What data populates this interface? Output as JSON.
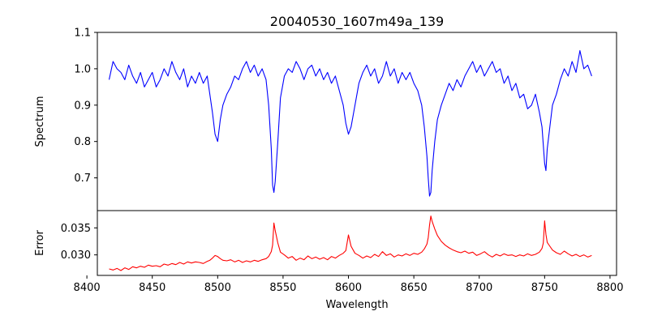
{
  "chart_data": [
    {
      "type": "line",
      "title": "20040530_1607m49a_139",
      "xlabel": "",
      "ylabel": "Spectrum",
      "xlim": [
        8408,
        8805
      ],
      "ylim": [
        0.61,
        1.1
      ],
      "yticks": [
        0.7,
        0.8,
        0.9,
        1.0,
        1.1
      ],
      "ytick_labels": [
        "0.7",
        "0.8",
        "0.9",
        "1.0",
        "1.1"
      ],
      "grid": false,
      "series": [
        {
          "color": "#0000ff",
          "x": [
            8417,
            8420,
            8423,
            8426,
            8429,
            8432,
            8435,
            8438,
            8441,
            8444,
            8447,
            8450,
            8453,
            8456,
            8459,
            8462,
            8465,
            8468,
            8471,
            8474,
            8477,
            8480,
            8483,
            8486,
            8489,
            8492,
            8494,
            8496,
            8498,
            8500,
            8502,
            8504,
            8507,
            8510,
            8513,
            8516,
            8519,
            8522,
            8525,
            8528,
            8531,
            8534,
            8537,
            8539,
            8541,
            8542,
            8543,
            8544,
            8546,
            8548,
            8551,
            8554,
            8557,
            8560,
            8563,
            8566,
            8569,
            8572,
            8575,
            8578,
            8581,
            8584,
            8587,
            8590,
            8593,
            8596,
            8598,
            8600,
            8602,
            8605,
            8608,
            8611,
            8614,
            8617,
            8620,
            8623,
            8626,
            8629,
            8632,
            8635,
            8638,
            8641,
            8644,
            8647,
            8650,
            8653,
            8656,
            8658,
            8660,
            8661,
            8662,
            8663,
            8664,
            8666,
            8668,
            8671,
            8674,
            8677,
            8680,
            8683,
            8686,
            8689,
            8692,
            8695,
            8698,
            8701,
            8704,
            8707,
            8710,
            8713,
            8716,
            8719,
            8722,
            8725,
            8728,
            8731,
            8734,
            8737,
            8740,
            8743,
            8746,
            8748,
            8749,
            8750,
            8751,
            8752,
            8754,
            8756,
            8759,
            8762,
            8765,
            8768,
            8771,
            8774,
            8777,
            8780,
            8783,
            8786
          ],
          "y": [
            0.97,
            1.02,
            1.0,
            0.99,
            0.97,
            1.01,
            0.98,
            0.96,
            0.99,
            0.95,
            0.97,
            0.99,
            0.95,
            0.97,
            1.0,
            0.98,
            1.02,
            0.99,
            0.97,
            1.0,
            0.95,
            0.98,
            0.96,
            0.99,
            0.96,
            0.98,
            0.93,
            0.88,
            0.82,
            0.8,
            0.86,
            0.9,
            0.93,
            0.95,
            0.98,
            0.97,
            1.0,
            1.02,
            0.99,
            1.01,
            0.98,
            1.0,
            0.97,
            0.9,
            0.78,
            0.68,
            0.66,
            0.69,
            0.8,
            0.92,
            0.98,
            1.0,
            0.99,
            1.02,
            1.0,
            0.97,
            1.0,
            1.01,
            0.98,
            1.0,
            0.97,
            0.99,
            0.96,
            0.98,
            0.94,
            0.9,
            0.85,
            0.82,
            0.84,
            0.9,
            0.96,
            0.99,
            1.01,
            0.98,
            1.0,
            0.96,
            0.98,
            1.02,
            0.98,
            1.0,
            0.96,
            0.99,
            0.97,
            0.99,
            0.96,
            0.94,
            0.9,
            0.84,
            0.76,
            0.7,
            0.65,
            0.66,
            0.72,
            0.8,
            0.86,
            0.9,
            0.93,
            0.96,
            0.94,
            0.97,
            0.95,
            0.98,
            1.0,
            1.02,
            0.99,
            1.01,
            0.98,
            1.0,
            1.02,
            0.99,
            1.0,
            0.96,
            0.98,
            0.94,
            0.96,
            0.92,
            0.93,
            0.89,
            0.9,
            0.93,
            0.88,
            0.84,
            0.79,
            0.74,
            0.72,
            0.78,
            0.84,
            0.9,
            0.93,
            0.97,
            1.0,
            0.98,
            1.02,
            0.99,
            1.05,
            1.0,
            1.01,
            0.98
          ]
        }
      ]
    },
    {
      "type": "line",
      "xlabel": "Wavelength",
      "ylabel": "Error",
      "xlim": [
        8408,
        8805
      ],
      "ylim": [
        0.0262,
        0.0382
      ],
      "yticks": [
        0.03,
        0.035
      ],
      "ytick_labels": [
        "0.030",
        "0.035"
      ],
      "xticks": [
        8400,
        8450,
        8500,
        8550,
        8600,
        8650,
        8700,
        8750,
        8800
      ],
      "xtick_labels": [
        "8400",
        "8450",
        "8500",
        "8550",
        "8600",
        "8650",
        "8700",
        "8750",
        "8800"
      ],
      "grid": false,
      "series": [
        {
          "color": "#ff0000",
          "x": [
            8417,
            8420,
            8423,
            8426,
            8429,
            8432,
            8435,
            8438,
            8441,
            8444,
            8447,
            8450,
            8453,
            8456,
            8459,
            8462,
            8465,
            8468,
            8471,
            8474,
            8477,
            8480,
            8483,
            8486,
            8489,
            8492,
            8494,
            8496,
            8498,
            8500,
            8502,
            8504,
            8507,
            8510,
            8513,
            8516,
            8519,
            8522,
            8525,
            8528,
            8531,
            8534,
            8537,
            8539,
            8541,
            8542,
            8543,
            8544,
            8546,
            8548,
            8551,
            8554,
            8557,
            8560,
            8563,
            8566,
            8569,
            8572,
            8575,
            8578,
            8581,
            8584,
            8587,
            8590,
            8593,
            8596,
            8598,
            8600,
            8602,
            8605,
            8608,
            8611,
            8614,
            8617,
            8620,
            8623,
            8626,
            8629,
            8632,
            8635,
            8638,
            8641,
            8644,
            8647,
            8650,
            8653,
            8656,
            8658,
            8660,
            8661,
            8662,
            8663,
            8664,
            8666,
            8668,
            8671,
            8674,
            8677,
            8680,
            8683,
            8686,
            8689,
            8692,
            8695,
            8698,
            8701,
            8704,
            8707,
            8710,
            8713,
            8716,
            8719,
            8722,
            8725,
            8728,
            8731,
            8734,
            8737,
            8740,
            8743,
            8746,
            8748,
            8749,
            8750,
            8751,
            8752,
            8754,
            8756,
            8759,
            8762,
            8765,
            8768,
            8771,
            8774,
            8777,
            8780,
            8783,
            8786
          ],
          "y": [
            0.0274,
            0.0272,
            0.0275,
            0.0271,
            0.0276,
            0.0273,
            0.0278,
            0.0276,
            0.0279,
            0.0277,
            0.0281,
            0.0279,
            0.028,
            0.0278,
            0.0283,
            0.0281,
            0.0284,
            0.0282,
            0.0286,
            0.0283,
            0.0287,
            0.0285,
            0.0287,
            0.0286,
            0.0284,
            0.0288,
            0.029,
            0.0294,
            0.0299,
            0.0297,
            0.0293,
            0.029,
            0.0289,
            0.0291,
            0.0287,
            0.029,
            0.0286,
            0.0289,
            0.0287,
            0.029,
            0.0288,
            0.0291,
            0.0293,
            0.0297,
            0.0306,
            0.0318,
            0.0359,
            0.0345,
            0.0322,
            0.0305,
            0.03,
            0.0294,
            0.0297,
            0.029,
            0.0294,
            0.0291,
            0.0298,
            0.0293,
            0.0296,
            0.0292,
            0.0295,
            0.0291,
            0.0297,
            0.0294,
            0.0299,
            0.0303,
            0.0308,
            0.0337,
            0.0316,
            0.0303,
            0.0299,
            0.0294,
            0.0298,
            0.0295,
            0.0301,
            0.0297,
            0.0306,
            0.0299,
            0.0302,
            0.0296,
            0.03,
            0.0298,
            0.0302,
            0.0299,
            0.0303,
            0.0301,
            0.0305,
            0.0311,
            0.032,
            0.0332,
            0.0355,
            0.0372,
            0.0362,
            0.0348,
            0.0336,
            0.0325,
            0.0318,
            0.0313,
            0.0309,
            0.0306,
            0.0304,
            0.0307,
            0.0303,
            0.0305,
            0.0299,
            0.0302,
            0.0306,
            0.03,
            0.0296,
            0.0301,
            0.0298,
            0.0302,
            0.0299,
            0.03,
            0.0297,
            0.03,
            0.0298,
            0.0302,
            0.0299,
            0.0301,
            0.0305,
            0.0312,
            0.0322,
            0.0363,
            0.0338,
            0.0323,
            0.0316,
            0.0309,
            0.0304,
            0.0301,
            0.0307,
            0.0302,
            0.0298,
            0.0301,
            0.0297,
            0.03,
            0.0296,
            0.0299
          ]
        }
      ]
    }
  ]
}
